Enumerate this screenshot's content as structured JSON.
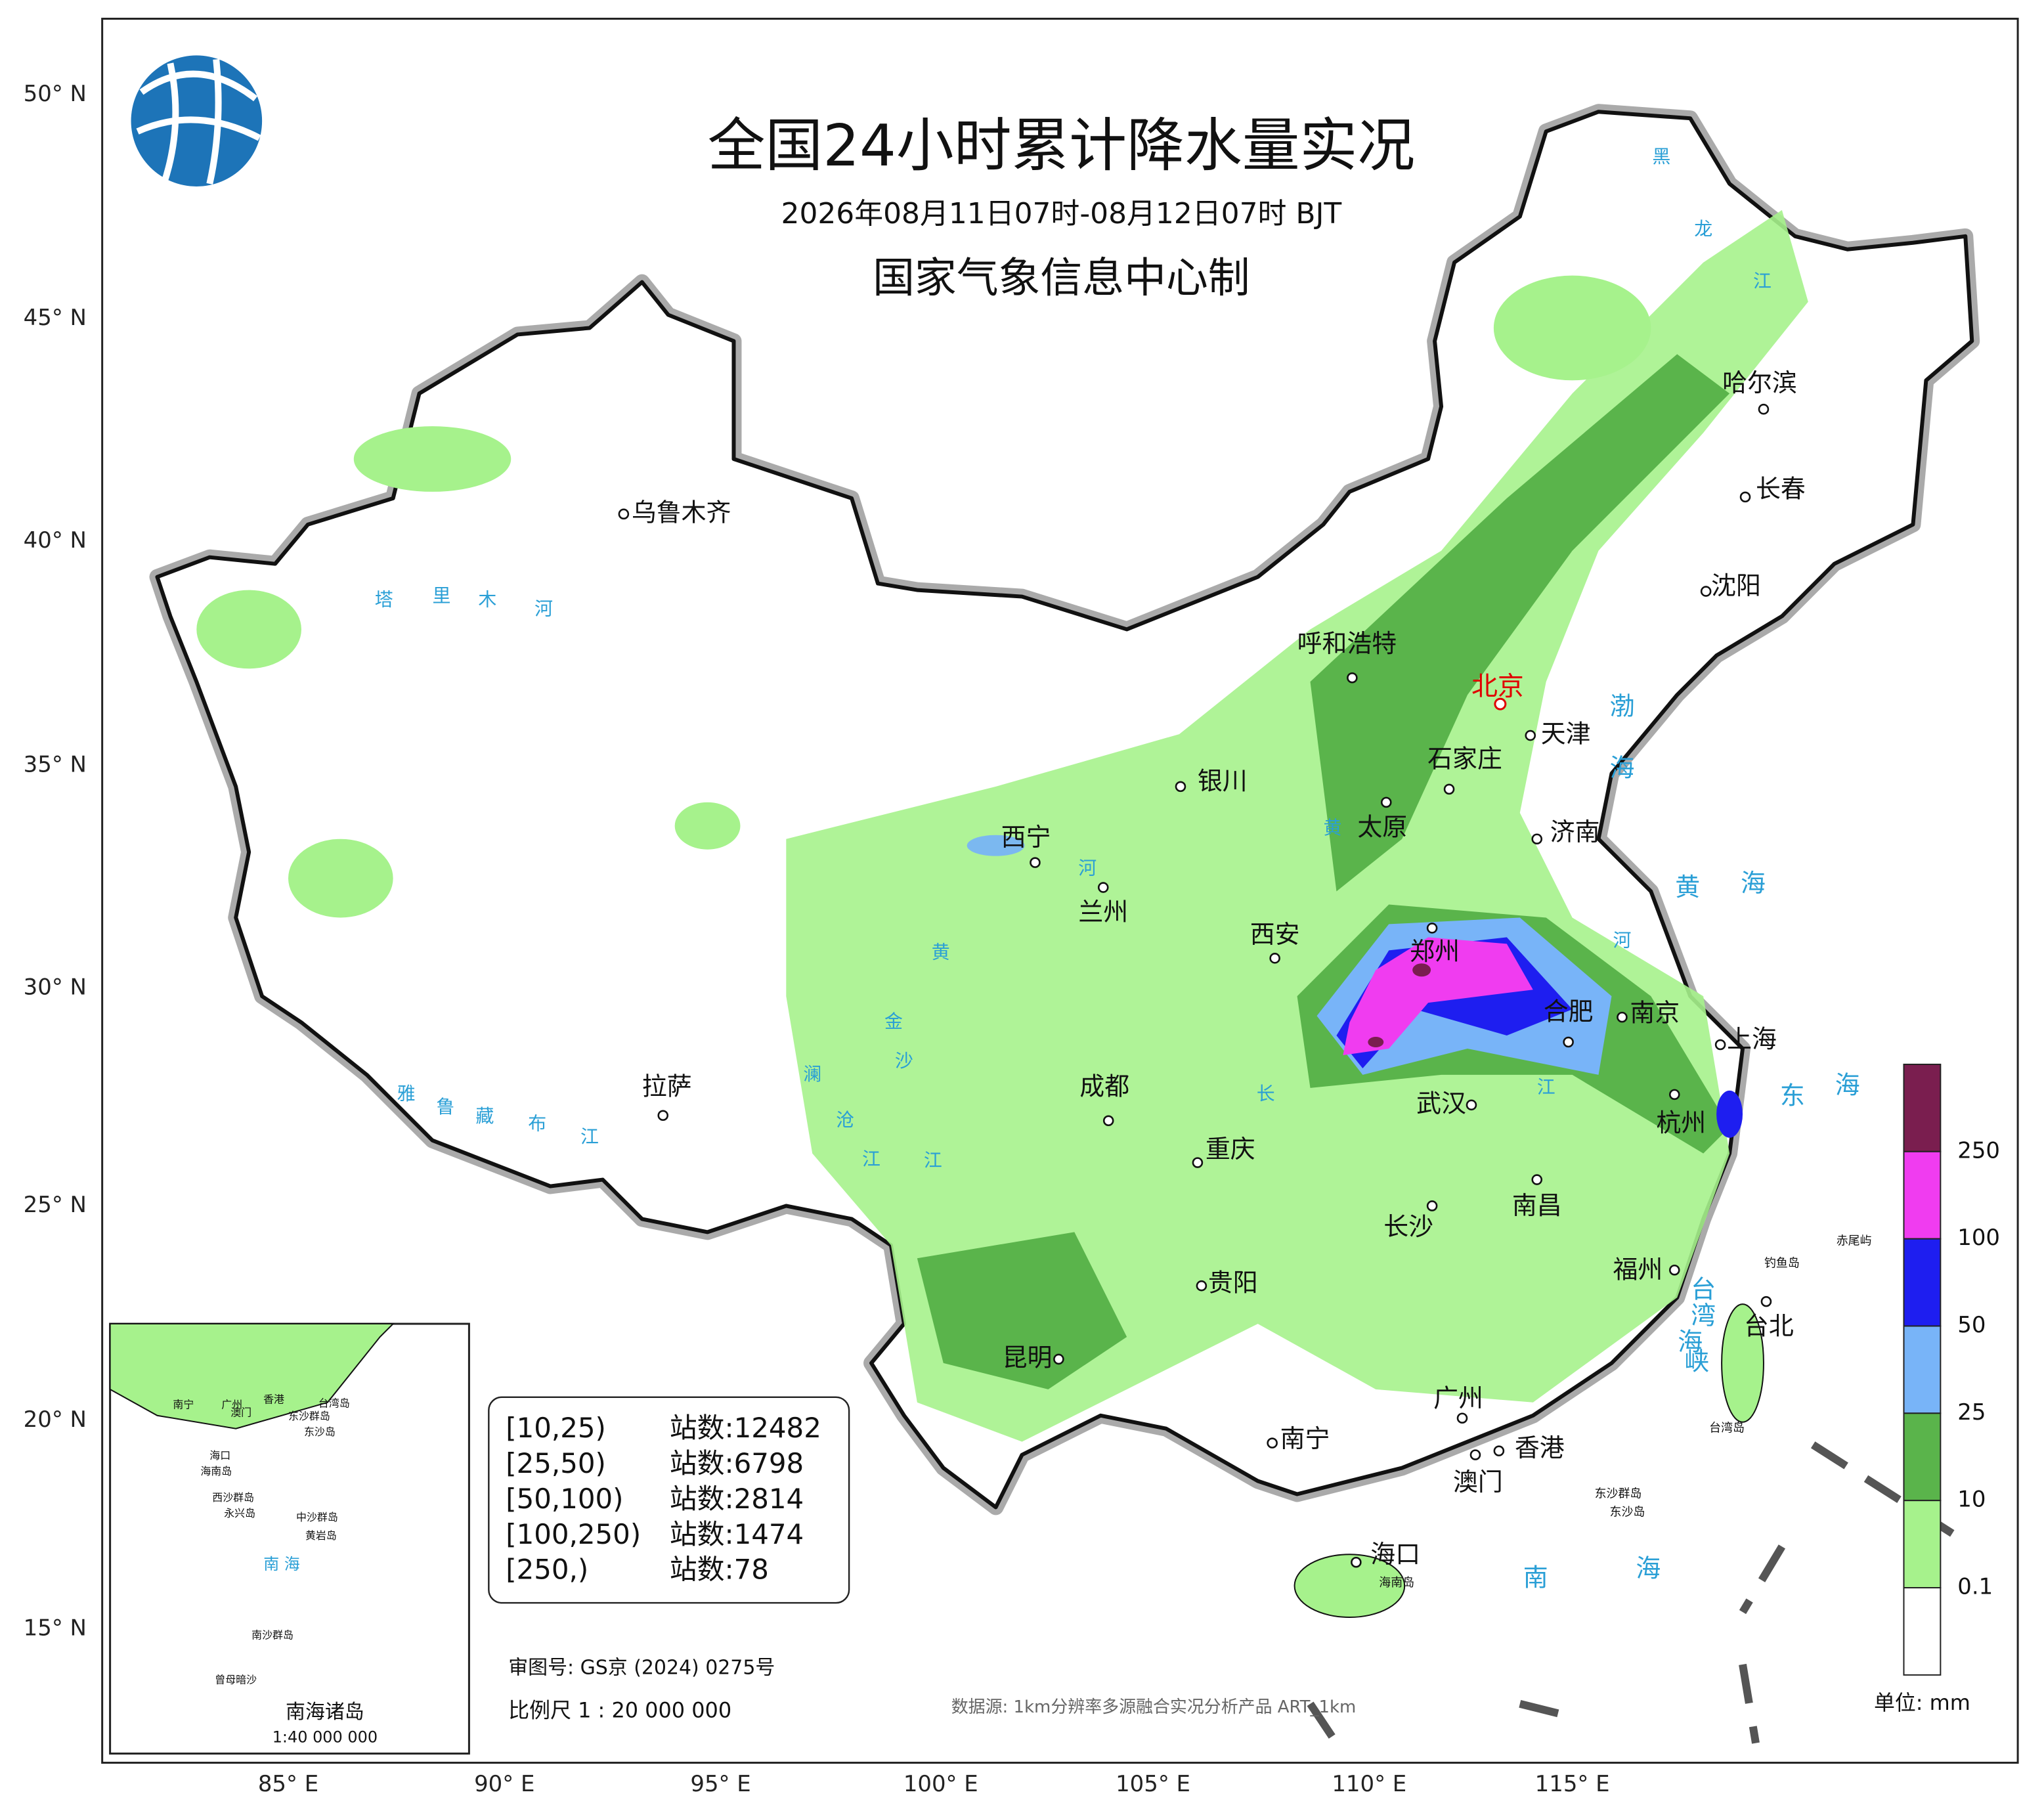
{
  "header": {
    "title": "全国24小时累计降水量实况",
    "subtitle": "2026年08月11日07时-08月12日07时 BJT",
    "producer": "国家气象信息中心制"
  },
  "latitude_labels": [
    "50° N",
    "45° N",
    "40° N",
    "35° N",
    "30° N",
    "25° N",
    "20° N",
    "15° N"
  ],
  "longitude_labels": [
    "85° E",
    "90° E",
    "95° E",
    "100° E",
    "105° E",
    "110° E",
    "115° E"
  ],
  "capital": {
    "label": "北京",
    "color": "#e00000"
  },
  "cities": [
    "乌鲁木齐",
    "呼和浩特",
    "天津",
    "石家庄",
    "银川",
    "太原",
    "济南",
    "西宁",
    "兰州",
    "西安",
    "郑州",
    "合肥",
    "南京",
    "上海",
    "拉萨",
    "成都",
    "武汉",
    "杭州",
    "重庆",
    "南昌",
    "长沙",
    "贵阳",
    "福州",
    "台北",
    "昆明",
    "南宁",
    "广州",
    "香港",
    "澳门",
    "海口",
    "哈尔滨",
    "长春",
    "沈阳"
  ],
  "seas": [
    "渤海",
    "黄海",
    "东海",
    "南海",
    "台湾海峡"
  ],
  "rivers": [
    "塔里木河",
    "雅鲁藏布江",
    "金沙江",
    "澜沧江",
    "黑龙江",
    "黄河",
    "黄河",
    "长江"
  ],
  "islands": [
    "钓鱼岛",
    "赤尾屿",
    "台湾岛",
    "东沙群岛",
    "东沙岛",
    "海南岛"
  ],
  "stats": {
    "rows": [
      [
        "[10,25)",
        "站数:12482"
      ],
      [
        "[25,50)",
        "站数:6798"
      ],
      [
        "[50,100)",
        "站数:2814"
      ],
      [
        "[100,250)",
        "站数:1474"
      ],
      [
        "[250,)",
        "站数:78"
      ]
    ]
  },
  "legend": {
    "colors": [
      "#7a1e4f",
      "#f03cf0",
      "#1e1ef0",
      "#78b4f8",
      "#5ab44b",
      "#a6f28c",
      "#ffffff"
    ],
    "labels": [
      "250",
      "100",
      "50",
      "25",
      "10",
      "0.1"
    ],
    "unit": "单位: mm"
  },
  "footer": {
    "approval": "审图号: GS京 (2024) 0275号",
    "scale": "比例尺 1 : 20 000 000",
    "source": "数据源: 1km分辨率多源融合实况分析产品 ART_1km"
  },
  "inset": {
    "title": "南海诸岛",
    "scale": "1:40 000 000",
    "labels": [
      "南宁",
      "广州",
      "香港",
      "澳门",
      "台湾岛",
      "东沙群岛",
      "东沙岛",
      "海口",
      "海南岛",
      "西沙群岛",
      "永兴岛",
      "中沙群岛",
      "黄岩岛",
      "南 海",
      "南沙群岛",
      "曾母暗沙"
    ]
  }
}
